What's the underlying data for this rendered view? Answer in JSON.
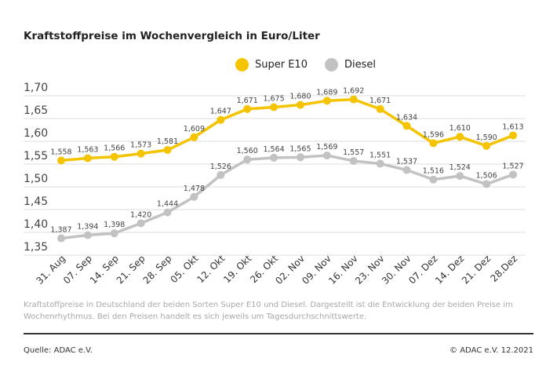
{
  "chart_data": {
    "type": "line",
    "title": "Kraftstoffpreise im Wochenvergleich in Euro/Liter",
    "categories": [
      "31. Aug",
      "07. Sep",
      "14. Sep",
      "21. Sep",
      "28. Sep",
      "05. Okt",
      "12. Okt",
      "19. Okt",
      "26. Okt",
      "02. Nov",
      "09. Nov",
      "16. Nov",
      "23. Nov",
      "30. Nov",
      "07. Dez",
      "14. Dez",
      "21. Dez",
      "28.Dez"
    ],
    "series": [
      {
        "name": "Super E10",
        "color": "#f5c400",
        "values": [
          1.558,
          1.563,
          1.566,
          1.573,
          1.581,
          1.609,
          1.647,
          1.671,
          1.675,
          1.68,
          1.689,
          1.692,
          1.671,
          1.634,
          1.596,
          1.61,
          1.59,
          1.613
        ]
      },
      {
        "name": "Diesel",
        "color": "#c2c2c2",
        "values": [
          1.387,
          1.394,
          1.398,
          1.42,
          1.444,
          1.478,
          1.526,
          1.56,
          1.564,
          1.565,
          1.569,
          1.557,
          1.551,
          1.537,
          1.516,
          1.524,
          1.506,
          1.527
        ]
      }
    ],
    "yticks": [
      "1,35",
      "1,40",
      "1,45",
      "1,50",
      "1,55",
      "1,60",
      "1,65",
      "1,70"
    ],
    "ylim": [
      1.35,
      1.7
    ],
    "grid": true,
    "legend": "top-center",
    "xlabel": "",
    "ylabel": ""
  },
  "note": "Kraftstoffpreise in Deutschland der beiden Sorten Super E10 und Diesel. Dargestellt ist die Entwicklung der beiden Preise im Wochenrhythmus. Bei den Preisen handelt es sich jeweils um Tagesdurchschnittswerte.",
  "source": "Quelle: ADAC e.V.",
  "copyright": "© ADAC e.V. 12.2021"
}
